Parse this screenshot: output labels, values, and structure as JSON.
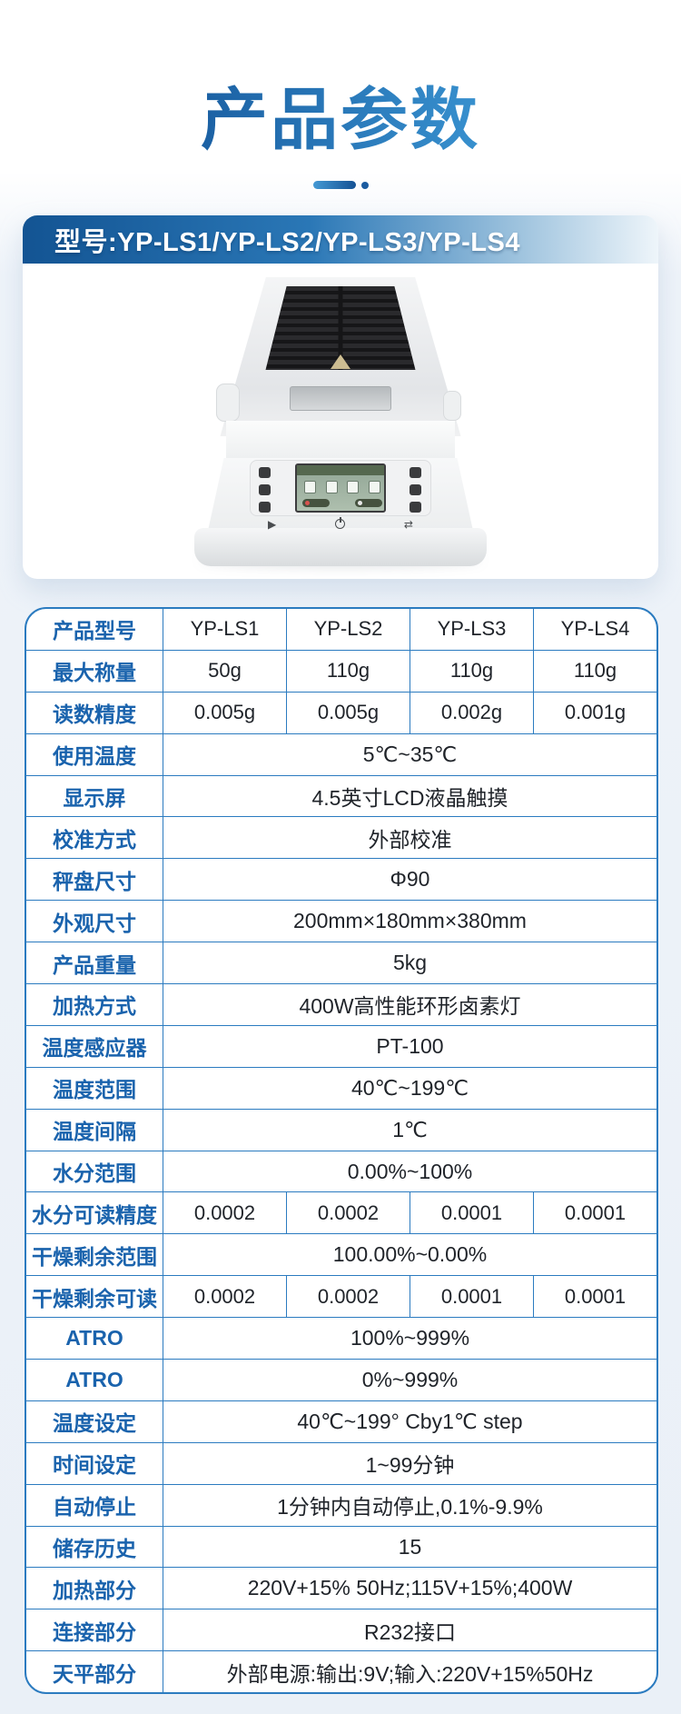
{
  "page": {
    "title": "产品参数",
    "bg_color": "#eaf0f7",
    "accent_dark": "#15569a",
    "accent_light": "#3e9bd8"
  },
  "card": {
    "model_label": "型号:YP-LS1/YP-LS2/YP-LS3/YP-LS4",
    "header_gradient_start": "#135493",
    "header_gradient_end": "#eef5fa",
    "device_description": "halogen-moisture-analyzer"
  },
  "table": {
    "border_color": "#2b7bc0",
    "label_color": "#1a63ad",
    "value_color": "#1f2329",
    "rows": [
      {
        "label": "产品型号",
        "cells": [
          "YP-LS1",
          "YP-LS2",
          "YP-LS3",
          "YP-LS4"
        ]
      },
      {
        "label": "最大称量",
        "cells": [
          "50g",
          "110g",
          "110g",
          "110g"
        ]
      },
      {
        "label": "读数精度",
        "cells": [
          "0.005g",
          "0.005g",
          "0.002g",
          "0.001g"
        ]
      },
      {
        "label": "使用温度",
        "span": "5℃~35℃"
      },
      {
        "label": "显示屏",
        "span": "4.5英寸LCD液晶触摸"
      },
      {
        "label": "校准方式",
        "span": "外部校准"
      },
      {
        "label": "秤盘尺寸",
        "span": "Φ90"
      },
      {
        "label": "外观尺寸",
        "span": "200mm×180mm×380mm"
      },
      {
        "label": "产品重量",
        "span": "5kg"
      },
      {
        "label": "加热方式",
        "span": "400W高性能环形卤素灯"
      },
      {
        "label": "温度感应器",
        "span": "PT-100"
      },
      {
        "label": "温度范围",
        "span": "40℃~199℃"
      },
      {
        "label": "温度间隔",
        "span": "1℃"
      },
      {
        "label": "水分范围",
        "span": "0.00%~100%"
      },
      {
        "label": "水分可读精度",
        "cells": [
          "0.0002",
          "0.0002",
          "0.0001",
          "0.0001"
        ]
      },
      {
        "label": "干燥剩余范围",
        "span": "100.00%~0.00%"
      },
      {
        "label": "干燥剩余可读",
        "cells": [
          "0.0002",
          "0.0002",
          "0.0001",
          "0.0001"
        ]
      },
      {
        "label": "ATRO",
        "span": "100%~999%"
      },
      {
        "label": "ATRO",
        "span": "0%~999%"
      },
      {
        "label": "温度设定",
        "span": "40℃~199° Cby1℃ step"
      },
      {
        "label": "时间设定",
        "span": "1~99分钟"
      },
      {
        "label": "自动停止",
        "span": "1分钟内自动停止,0.1%-9.9%"
      },
      {
        "label": "储存历史",
        "span": "15"
      },
      {
        "label": "加热部分",
        "span": "220V+15% 50Hz;115V+15%;400W"
      },
      {
        "label": "连接部分",
        "span": "R232接口"
      },
      {
        "label": "天平部分",
        "span": "外部电源:输出:9V;输入:220V+15%50Hz"
      }
    ]
  }
}
